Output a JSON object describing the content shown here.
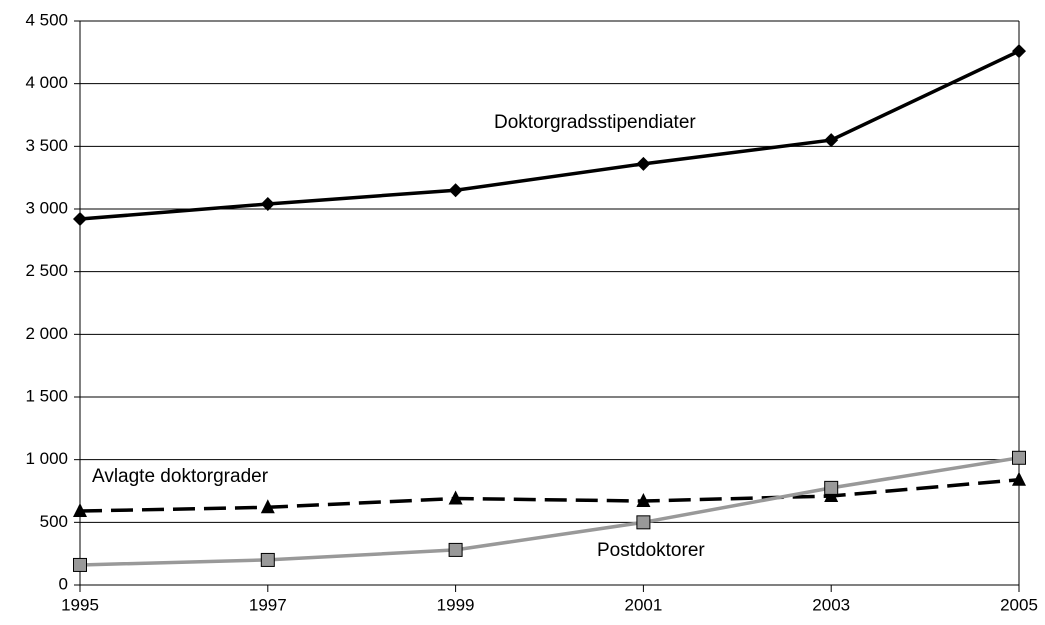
{
  "chart_data": {
    "type": "line",
    "x": [
      1995,
      1997,
      1999,
      2001,
      2003,
      2005
    ],
    "xlim": [
      1995,
      2005
    ],
    "xticks": [
      1995,
      1997,
      1999,
      2001,
      2003,
      2005
    ],
    "ylim": [
      0,
      4500
    ],
    "yticks": [
      0,
      500,
      {
        "value": 1000,
        "label": "1 000"
      },
      {
        "value": 1500,
        "label": "1 500"
      },
      {
        "value": 2000,
        "label": "2 000"
      },
      {
        "value": 2500,
        "label": "2 500"
      },
      {
        "value": 3000,
        "label": "3 000"
      },
      {
        "value": 3500,
        "label": "3 500"
      },
      {
        "value": 4000,
        "label": "4 000"
      },
      {
        "value": 4500,
        "label": "4 500"
      }
    ],
    "grid": true,
    "series": [
      {
        "name": "Doktorgradsstipendiater",
        "color": "#000000",
        "marker": "diamond",
        "dash": "solid",
        "values": [
          2920,
          3040,
          3150,
          3360,
          3550,
          4260
        ]
      },
      {
        "name": "Avlagte doktorgrader",
        "color": "#000000",
        "marker": "triangle",
        "dash": "dashed",
        "values": [
          590,
          620,
          690,
          670,
          710,
          840
        ]
      },
      {
        "name": "Postdoktorer",
        "color": "#999999",
        "marker": "square",
        "dash": "solid",
        "values": [
          160,
          200,
          280,
          500,
          775,
          1015
        ]
      }
    ]
  }
}
